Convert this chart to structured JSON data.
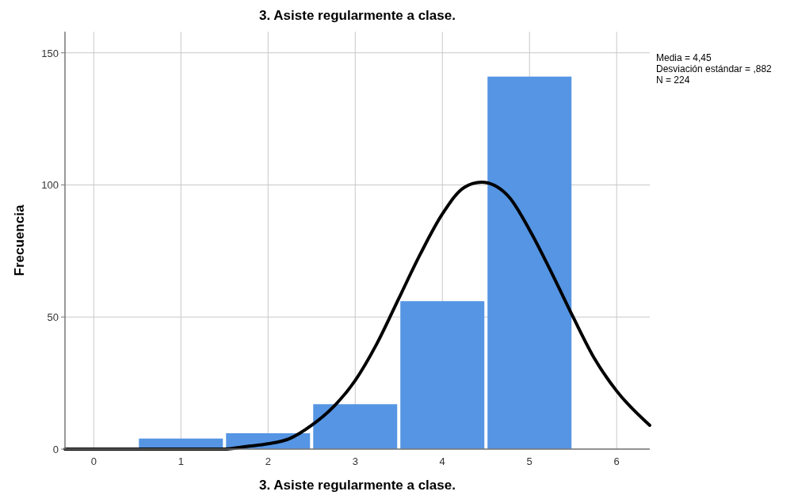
{
  "chart_data": {
    "type": "histogram",
    "title": "3. Asiste regularmente a clase.",
    "xlabel": "3. Asiste regularmente a clase.",
    "ylabel": "Frecuencia",
    "bins": [
      0.5,
      1.5,
      2.5,
      3.5,
      4.5,
      5.5
    ],
    "values": [
      4,
      6,
      17,
      56,
      141
    ],
    "color": "#5595e3",
    "series": [
      {
        "type": "line",
        "color": "#000000",
        "x": [
          -0.33,
          0,
          0.5,
          1,
          1.5,
          1.75,
          2,
          2.25,
          2.5,
          2.75,
          3,
          3.25,
          3.5,
          3.75,
          4,
          4.25,
          4.45,
          4.75,
          5,
          5.25,
          5.5,
          5.75,
          6,
          6.38
        ],
        "values": [
          0,
          0,
          0,
          0,
          0,
          1,
          2,
          4,
          9,
          16,
          26,
          40,
          57,
          74,
          89,
          99,
          101,
          96,
          83,
          67,
          50,
          34,
          22,
          9
        ]
      }
    ],
    "xlim": [
      -0.33,
      6.38
    ],
    "ylim": [
      0,
      158
    ],
    "xticks": [
      0,
      1,
      2,
      3,
      4,
      5,
      6
    ],
    "yticks": [
      0,
      50,
      100,
      150
    ],
    "grid": true,
    "annotations": [
      "Media = 4,45",
      "Desviación estándar = ,882",
      "N = 224"
    ]
  }
}
